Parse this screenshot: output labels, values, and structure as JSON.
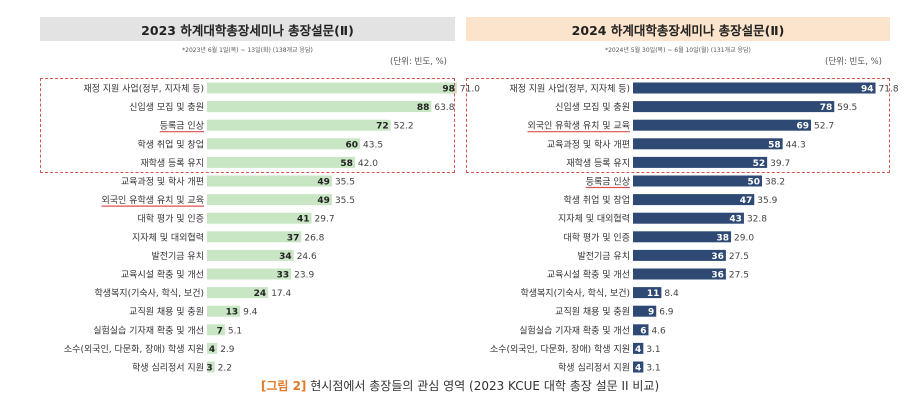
{
  "caption": {
    "figure_no": "[그림 2]",
    "text": "현시점에서 총장들의 관심 영역 (2023 KCUE 대학 총장 설문 II  비교)"
  },
  "chart_data": [
    {
      "type": "bar",
      "title": "2023 하계대학총장세미나 총장설문(Ⅱ)",
      "subtitle": "*2023년 6월 1일(목) ~ 13일(화) (138개교 응답)",
      "unit": "(단위: 빈도, %)",
      "bar_color": "#c8e6c4",
      "categories": [
        "재정 지원 사업(정부, 지자체 등)",
        "신입생 모집 및 충원",
        "등록금 인상",
        "학생 취업 및 창업",
        "재학생 등록 유지",
        "교육과정 및 학사 개편",
        "외국인 유학생 유치 및 교육",
        "대학 평가 및 인증",
        "지자체 및 대외협력",
        "발전기금 유치",
        "교육시설 확충 및 개선",
        "학생복지(기숙사, 학식, 보건)",
        "교직원 채용 및 충원",
        "실험실습 기자재 확충 및 개선",
        "소수(외국인, 다문화, 장애) 학생 지원",
        "학생 심리정서 지원"
      ],
      "values": [
        98,
        88,
        72,
        60,
        58,
        49,
        49,
        41,
        37,
        34,
        33,
        24,
        13,
        7,
        4,
        3
      ],
      "percents": [
        "71.0",
        "63.8",
        "52.2",
        "43.5",
        "42.0",
        "35.5",
        "35.5",
        "29.7",
        "26.8",
        "24.6",
        "23.9",
        "17.4",
        "9.4",
        "5.1",
        "2.9",
        "2.2"
      ],
      "underlined": [
        "등록금 인상",
        "외국인 유학생 유치 및 교육"
      ],
      "highlight_top": 5,
      "xlim": [
        0,
        100
      ]
    },
    {
      "type": "bar",
      "title": "2024 하계대학총장세미나 총장설문(Ⅱ)",
      "subtitle": "*2024년 5월 30일(목) ~ 6월 10일(월) (131개교 응답)",
      "unit": "(단위: 빈도, %)",
      "bar_color": "#2f4975",
      "categories": [
        "재정 지원 사업(정부, 지자체 등)",
        "신입생 모집 및 충원",
        "외국인 유학생 유치 및 교육",
        "교육과정 및 학사 개편",
        "재학생 등록 유지",
        "등록금 인상",
        "학생 취업 및 창업",
        "지자체 및 대외협력",
        "대학 평가 및 인증",
        "발전기금 유치",
        "교육시설 확충 및 개선",
        "학생복지(기숙사, 학식, 보건)",
        "교직원 채용 및 충원",
        "실험실습 기자재 확충 및 개선",
        "소수(외국인, 다문화, 장애) 학생 지원",
        "학생 심리정서 지원"
      ],
      "values": [
        94,
        78,
        69,
        58,
        52,
        50,
        47,
        43,
        38,
        36,
        36,
        11,
        9,
        6,
        4,
        4
      ],
      "percents": [
        "71.8",
        "59.5",
        "52.7",
        "44.3",
        "39.7",
        "38.2",
        "35.9",
        "32.8",
        "29.0",
        "27.5",
        "27.5",
        "8.4",
        "6.9",
        "4.6",
        "3.1",
        "3.1"
      ],
      "underlined": [
        "외국인 유학생 유치 및 교육",
        "등록금 인상"
      ],
      "highlight_top": 5,
      "xlim": [
        0,
        100
      ]
    }
  ]
}
